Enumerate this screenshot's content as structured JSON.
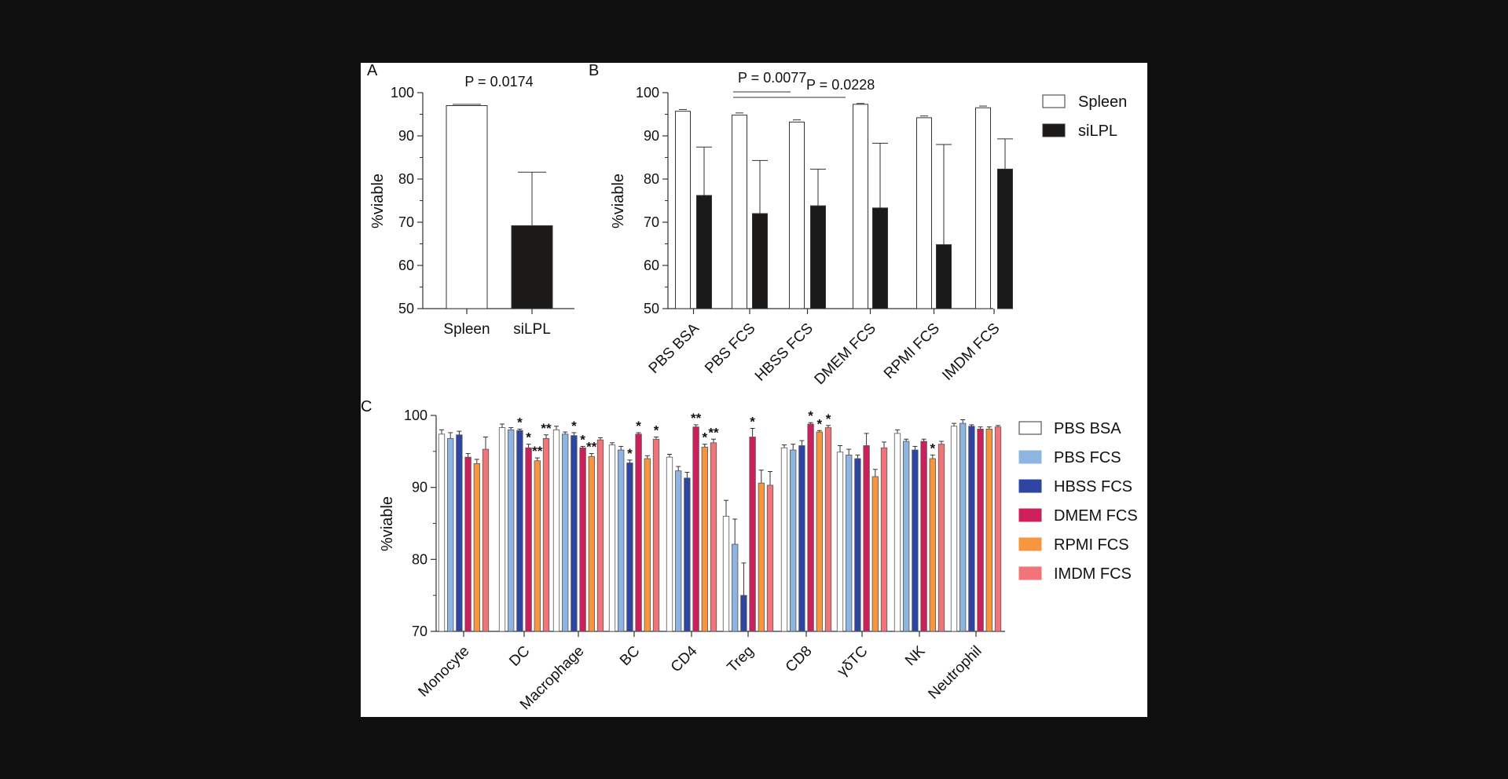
{
  "panel_letters": {
    "a": "A",
    "b": "B",
    "c": "C"
  },
  "chart_data": [
    {
      "type": "bar",
      "panel": "A",
      "ylabel": "%viable",
      "ylim": [
        50,
        100
      ],
      "yticks": [
        50,
        60,
        70,
        80,
        90,
        100
      ],
      "categories": [
        "Spleen",
        "siLPL"
      ],
      "values": [
        97.0,
        69.2
      ],
      "errors": [
        0.3,
        12.4
      ],
      "colors": [
        "#ffffff",
        "#1c1a18"
      ],
      "annotation": "P = 0.0174"
    },
    {
      "type": "bar",
      "panel": "B",
      "ylabel": "%viable",
      "ylim": [
        50,
        100
      ],
      "yticks": [
        50,
        60,
        70,
        80,
        90,
        100
      ],
      "categories": [
        "PBS BSA",
        "PBS FCS",
        "HBSS FCS",
        "DMEM FCS",
        "RPMI FCS",
        "IMDM FCS"
      ],
      "series": [
        {
          "name": "Spleen",
          "color": "#ffffff",
          "values": [
            95.7,
            94.8,
            93.2,
            97.3,
            94.2,
            96.5
          ],
          "errors": [
            0.4,
            0.5,
            0.5,
            0.2,
            0.4,
            0.4
          ]
        },
        {
          "name": "siLPL",
          "color": "#1c1a18",
          "values": [
            76.2,
            72.0,
            73.8,
            73.3,
            64.8,
            82.3
          ],
          "errors": [
            11.2,
            12.3,
            8.5,
            15.0,
            23.2,
            7.0
          ]
        }
      ],
      "annotations": [
        {
          "text": "P = 0.0077",
          "from": "PBS FCS",
          "to": "PBS FCS"
        },
        {
          "text": "P = 0.0228",
          "from": "PBS FCS",
          "to": "HBSS FCS"
        }
      ],
      "legend": "right"
    },
    {
      "type": "bar",
      "panel": "C",
      "ylabel": "%viable",
      "ylim": [
        70,
        100
      ],
      "yticks": [
        70,
        80,
        90,
        100
      ],
      "categories": [
        "Monocyte",
        "DC",
        "Macrophage",
        "BC",
        "CD4",
        "Treg",
        "CD8",
        "γδTC",
        "NK",
        "Neutrophil"
      ],
      "series": [
        {
          "name": "PBS BSA",
          "color": "#ffffff",
          "values": [
            97.4,
            98.3,
            98.0,
            95.9,
            94.2,
            86.0,
            95.5,
            94.9,
            97.5,
            98.5
          ],
          "errors": [
            0.6,
            0.5,
            0.5,
            0.3,
            0.4,
            2.2,
            0.4,
            0.9,
            0.5,
            0.4
          ],
          "stars": [
            "",
            "",
            "",
            "",
            "",
            "",
            "",
            "",
            "",
            ""
          ]
        },
        {
          "name": "PBS FCS",
          "color": "#8db4e2",
          "values": [
            96.8,
            98.0,
            97.4,
            95.2,
            92.3,
            82.1,
            95.2,
            94.5,
            96.4,
            98.9
          ],
          "errors": [
            0.8,
            0.3,
            0.3,
            0.5,
            0.6,
            3.5,
            0.8,
            0.8,
            0.3,
            0.5
          ],
          "stars": [
            "",
            "",
            "",
            "",
            "",
            "",
            "",
            "",
            "",
            ""
          ]
        },
        {
          "name": "HBSS FCS",
          "color": "#2e45a3",
          "values": [
            97.3,
            97.9,
            97.2,
            93.4,
            91.3,
            75.0,
            95.8,
            94.0,
            95.2,
            98.5
          ],
          "errors": [
            0.5,
            0.2,
            0.4,
            0.4,
            0.8,
            4.5,
            0.7,
            0.5,
            0.5,
            0.2
          ],
          "stars": [
            "",
            "*",
            "*",
            "*",
            "",
            "",
            "",
            "",
            "",
            ""
          ]
        },
        {
          "name": "DMEM FCS",
          "color": "#cc1f5c",
          "values": [
            94.2,
            95.5,
            95.5,
            97.4,
            98.4,
            97.0,
            98.8,
            95.8,
            96.4,
            98.1
          ],
          "errors": [
            0.5,
            0.5,
            0.2,
            0.2,
            0.3,
            1.2,
            0.2,
            1.7,
            0.3,
            0.3
          ],
          "stars": [
            "",
            "*",
            "*",
            "*",
            "**",
            "*",
            "*",
            "",
            "",
            ""
          ]
        },
        {
          "name": "RPMI FCS",
          "color": "#f7963f",
          "values": [
            93.3,
            93.7,
            94.3,
            94.0,
            95.6,
            90.6,
            97.7,
            91.5,
            94.0,
            98.1
          ],
          "errors": [
            0.6,
            0.4,
            0.4,
            0.4,
            0.4,
            1.8,
            0.2,
            1.0,
            0.5,
            0.3
          ],
          "stars": [
            "",
            "**",
            "**",
            "",
            "*",
            "",
            "*",
            "",
            "*",
            ""
          ]
        },
        {
          "name": "IMDM FCS",
          "color": "#f07478",
          "values": [
            95.3,
            96.8,
            96.6,
            96.7,
            96.2,
            90.3,
            98.3,
            95.5,
            96.0,
            98.4
          ],
          "errors": [
            1.7,
            0.5,
            0.3,
            0.3,
            0.5,
            1.9,
            0.3,
            0.8,
            0.4,
            0.2
          ],
          "stars": [
            "",
            "**",
            "",
            "*",
            "**",
            "",
            "*",
            "",
            "",
            ""
          ]
        }
      ],
      "legend": "right"
    }
  ]
}
